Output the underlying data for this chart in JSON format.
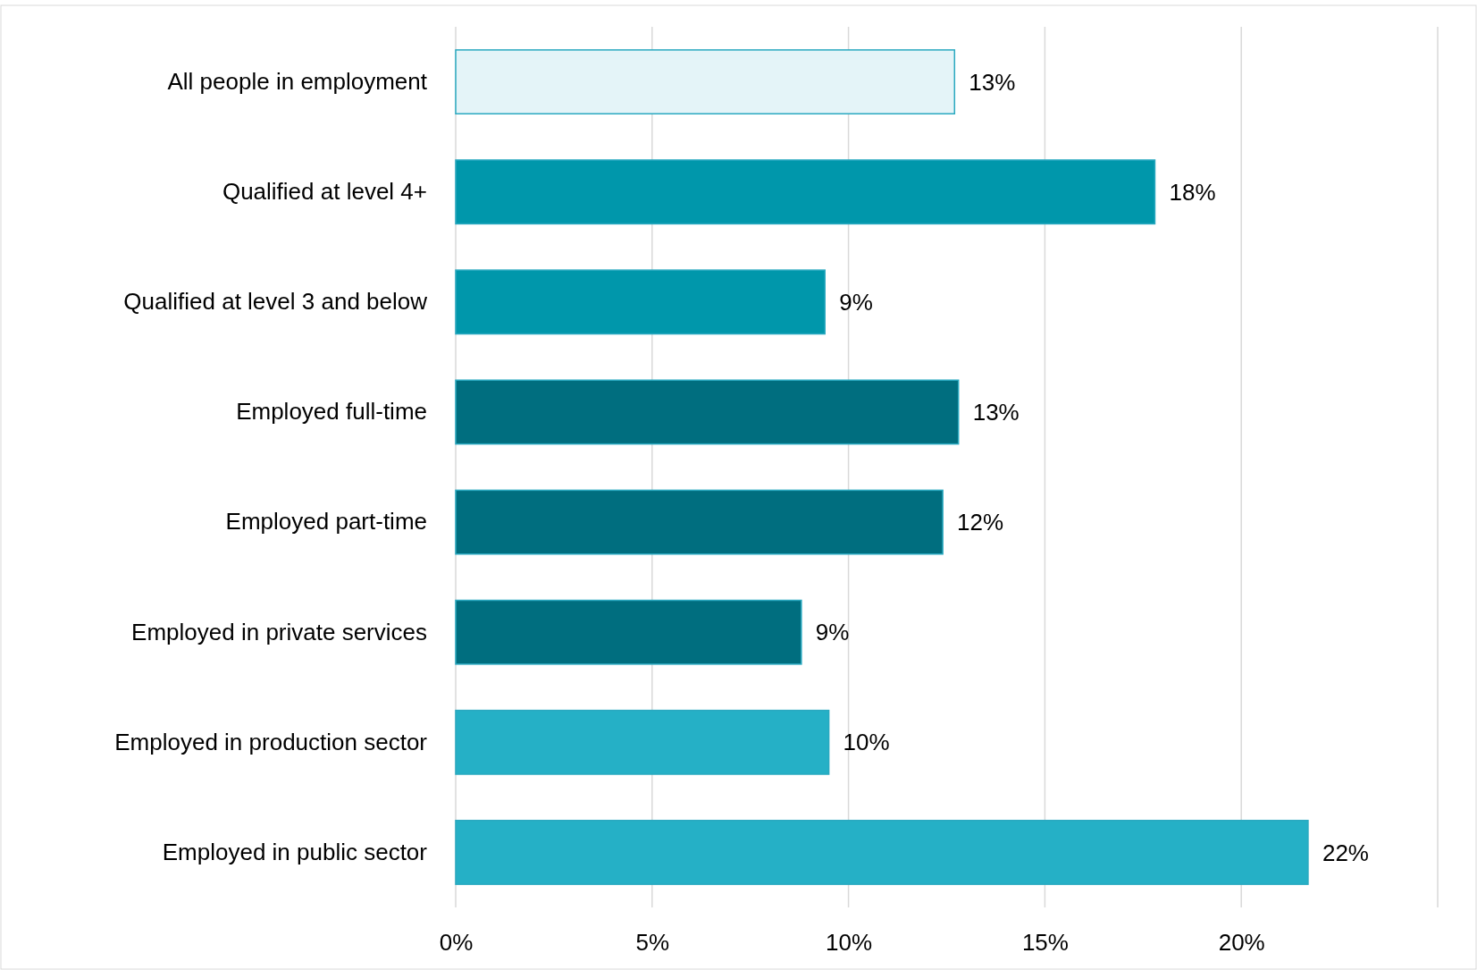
{
  "chart_data": {
    "type": "bar",
    "orientation": "horizontal",
    "categories": [
      "All people in employment",
      "Qualified at level 4+",
      "Qualified at level 3 and below",
      "Employed full-time",
      "Employed part-time",
      "Employed in private services",
      "Employed in production sector",
      "Employed in public sector"
    ],
    "values": [
      12.7,
      17.8,
      9.4,
      12.8,
      12.4,
      8.8,
      9.5,
      21.7
    ],
    "value_labels": [
      "13%",
      "18%",
      "9%",
      "13%",
      "12%",
      "9%",
      "10%",
      "22%"
    ],
    "colors": [
      "#e4f4f8",
      "#0097ab",
      "#0097ab",
      "#006e7f",
      "#006e7f",
      "#006e7f",
      "#25b0c6",
      "#25b0c6"
    ],
    "xlim": [
      0,
      25
    ],
    "xticks": [
      {
        "value": 0,
        "label": "0%"
      },
      {
        "value": 5,
        "label": "5%"
      },
      {
        "value": 10,
        "label": "10%"
      },
      {
        "value": 15,
        "label": "15%"
      },
      {
        "value": 20,
        "label": "20%"
      },
      {
        "value": 25,
        "label": null
      }
    ],
    "grid": "x"
  }
}
